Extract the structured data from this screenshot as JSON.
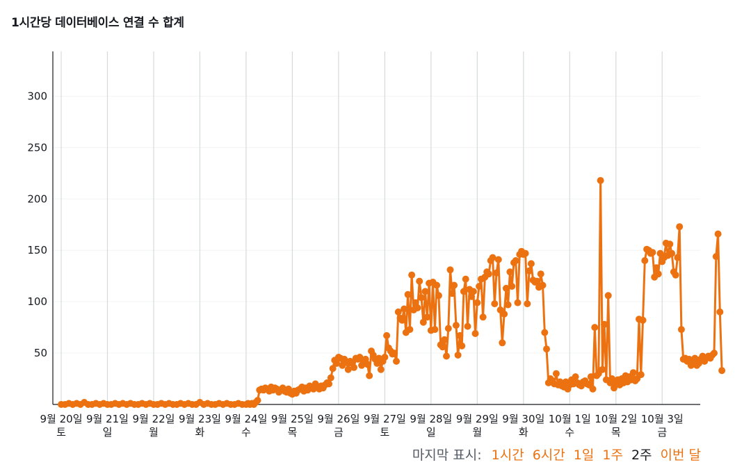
{
  "title": "1시간당 데이터베이스 연결 수 합계",
  "footer": {
    "label": "마지막 표시:",
    "options": [
      {
        "label": "1시간",
        "active": false
      },
      {
        "label": "6시간",
        "active": false
      },
      {
        "label": "1일",
        "active": false
      },
      {
        "label": "1주",
        "active": false
      },
      {
        "label": "2주",
        "active": true
      },
      {
        "label": "이번 달",
        "active": false
      }
    ]
  },
  "colors": {
    "series": "#ec7211",
    "grid_vertical": "#d5dbdb",
    "grid_horizontal": "#f2f3f3",
    "axis": "#16191f"
  },
  "chart_data": {
    "type": "line",
    "title": "1시간당 데이터베이스 연결 수 합계",
    "xlabel": "",
    "ylabel": "",
    "ylim": [
      0,
      330
    ],
    "yticks": [
      50,
      100,
      150,
      200,
      250,
      300
    ],
    "x_unit": "hour",
    "xlim": [
      0,
      348
    ],
    "grid": true,
    "day_ticks": [
      {
        "x": 0,
        "label1": "9월 20일",
        "label2": "토"
      },
      {
        "x": 24,
        "label1": "9월 21일",
        "label2": "일"
      },
      {
        "x": 48,
        "label1": "9월 22일",
        "label2": "월"
      },
      {
        "x": 72,
        "label1": "9월 23일",
        "label2": "화"
      },
      {
        "x": 96,
        "label1": "9월 24일",
        "label2": "수"
      },
      {
        "x": 120,
        "label1": "9월 25일",
        "label2": "목"
      },
      {
        "x": 144,
        "label1": "9월 26일",
        "label2": "금"
      },
      {
        "x": 168,
        "label1": "9월 27일",
        "label2": "토"
      },
      {
        "x": 192,
        "label1": "9월 28일",
        "label2": "일"
      },
      {
        "x": 216,
        "label1": "9월 29일",
        "label2": "월"
      },
      {
        "x": 240,
        "label1": "9월 30일",
        "label2": "화"
      },
      {
        "x": 264,
        "label1": "10월 1일",
        "label2": "수"
      },
      {
        "x": 288,
        "label1": "10월 2일",
        "label2": "목"
      },
      {
        "x": 312,
        "label1": "10월 3일",
        "label2": "금"
      }
    ],
    "series": [
      {
        "values": [
          [
            0,
            0
          ],
          [
            2,
            0
          ],
          [
            4,
            1
          ],
          [
            6,
            0
          ],
          [
            8,
            1
          ],
          [
            10,
            0
          ],
          [
            12,
            2
          ],
          [
            14,
            0
          ],
          [
            16,
            0
          ],
          [
            18,
            1
          ],
          [
            20,
            0
          ],
          [
            22,
            1
          ],
          [
            24,
            0
          ],
          [
            26,
            0
          ],
          [
            28,
            1
          ],
          [
            30,
            0
          ],
          [
            32,
            1
          ],
          [
            34,
            0
          ],
          [
            36,
            1
          ],
          [
            38,
            0
          ],
          [
            40,
            0
          ],
          [
            42,
            1
          ],
          [
            44,
            0
          ],
          [
            46,
            1
          ],
          [
            48,
            0
          ],
          [
            50,
            0
          ],
          [
            52,
            1
          ],
          [
            54,
            0
          ],
          [
            56,
            1
          ],
          [
            58,
            0
          ],
          [
            60,
            0
          ],
          [
            62,
            1
          ],
          [
            64,
            0
          ],
          [
            66,
            1
          ],
          [
            68,
            0
          ],
          [
            70,
            0
          ],
          [
            72,
            2
          ],
          [
            74,
            0
          ],
          [
            76,
            1
          ],
          [
            78,
            0
          ],
          [
            80,
            0
          ],
          [
            82,
            1
          ],
          [
            84,
            0
          ],
          [
            86,
            1
          ],
          [
            88,
            0
          ],
          [
            90,
            0
          ],
          [
            92,
            1
          ],
          [
            94,
            0
          ],
          [
            96,
            0
          ],
          [
            97,
            1
          ],
          [
            98,
            0
          ],
          [
            99,
            1
          ],
          [
            100,
            0
          ],
          [
            101,
            2
          ],
          [
            102,
            4
          ],
          [
            103,
            14
          ],
          [
            104,
            15
          ],
          [
            105,
            14
          ],
          [
            106,
            16
          ],
          [
            107,
            15
          ],
          [
            108,
            13
          ],
          [
            109,
            17
          ],
          [
            110,
            14
          ],
          [
            111,
            16
          ],
          [
            112,
            15
          ],
          [
            113,
            12
          ],
          [
            114,
            14
          ],
          [
            115,
            16
          ],
          [
            116,
            13
          ],
          [
            117,
            12
          ],
          [
            118,
            15
          ],
          [
            119,
            11
          ],
          [
            120,
            10
          ],
          [
            121,
            13
          ],
          [
            122,
            11
          ],
          [
            123,
            14
          ],
          [
            124,
            15
          ],
          [
            125,
            17
          ],
          [
            126,
            13
          ],
          [
            127,
            16
          ],
          [
            128,
            14
          ],
          [
            129,
            18
          ],
          [
            130,
            16
          ],
          [
            131,
            15
          ],
          [
            132,
            20
          ],
          [
            133,
            17
          ],
          [
            134,
            15
          ],
          [
            135,
            18
          ],
          [
            136,
            16
          ],
          [
            137,
            19
          ],
          [
            138,
            21
          ],
          [
            139,
            20
          ],
          [
            140,
            26
          ],
          [
            141,
            35
          ],
          [
            142,
            43
          ],
          [
            143,
            40
          ],
          [
            144,
            46
          ],
          [
            145,
            45
          ],
          [
            146,
            38
          ],
          [
            147,
            44
          ],
          [
            148,
            41
          ],
          [
            149,
            34
          ],
          [
            150,
            42
          ],
          [
            151,
            40
          ],
          [
            152,
            36
          ],
          [
            153,
            45
          ],
          [
            154,
            44
          ],
          [
            155,
            46
          ],
          [
            156,
            38
          ],
          [
            157,
            42
          ],
          [
            158,
            44
          ],
          [
            159,
            39
          ],
          [
            160,
            28
          ],
          [
            161,
            52
          ],
          [
            162,
            48
          ],
          [
            163,
            44
          ],
          [
            164,
            40
          ],
          [
            165,
            45
          ],
          [
            166,
            34
          ],
          [
            167,
            42
          ],
          [
            168,
            46
          ],
          [
            169,
            67
          ],
          [
            170,
            55
          ],
          [
            171,
            52
          ],
          [
            172,
            49
          ],
          [
            173,
            50
          ],
          [
            174,
            42
          ],
          [
            175,
            90
          ],
          [
            176,
            84
          ],
          [
            177,
            82
          ],
          [
            178,
            93
          ],
          [
            179,
            70
          ],
          [
            180,
            107
          ],
          [
            181,
            73
          ],
          [
            182,
            126
          ],
          [
            183,
            92
          ],
          [
            184,
            99
          ],
          [
            185,
            94
          ],
          [
            186,
            120
          ],
          [
            187,
            104
          ],
          [
            188,
            80
          ],
          [
            189,
            110
          ],
          [
            190,
            85
          ],
          [
            191,
            118
          ],
          [
            192,
            72
          ],
          [
            193,
            119
          ],
          [
            194,
            73
          ],
          [
            195,
            116
          ],
          [
            196,
            106
          ],
          [
            197,
            58
          ],
          [
            198,
            56
          ],
          [
            199,
            63
          ],
          [
            200,
            47
          ],
          [
            201,
            74
          ],
          [
            202,
            131
          ],
          [
            203,
            108
          ],
          [
            204,
            116
          ],
          [
            205,
            77
          ],
          [
            206,
            48
          ],
          [
            207,
            67
          ],
          [
            208,
            57
          ],
          [
            209,
            110
          ],
          [
            210,
            122
          ],
          [
            211,
            76
          ],
          [
            212,
            112
          ],
          [
            213,
            105
          ],
          [
            214,
            110
          ],
          [
            215,
            69
          ],
          [
            216,
            99
          ],
          [
            217,
            115
          ],
          [
            218,
            122
          ],
          [
            219,
            85
          ],
          [
            220,
            124
          ],
          [
            221,
            129
          ],
          [
            222,
            127
          ],
          [
            223,
            140
          ],
          [
            224,
            143
          ],
          [
            225,
            98
          ],
          [
            226,
            128
          ],
          [
            227,
            141
          ],
          [
            228,
            92
          ],
          [
            229,
            60
          ],
          [
            230,
            88
          ],
          [
            231,
            113
          ],
          [
            232,
            97
          ],
          [
            233,
            129
          ],
          [
            234,
            115
          ],
          [
            235,
            138
          ],
          [
            236,
            140
          ],
          [
            237,
            99
          ],
          [
            238,
            146
          ],
          [
            239,
            149
          ],
          [
            240,
            146
          ],
          [
            241,
            147
          ],
          [
            242,
            98
          ],
          [
            243,
            130
          ],
          [
            244,
            137
          ],
          [
            245,
            121
          ],
          [
            246,
            119
          ],
          [
            247,
            120
          ],
          [
            248,
            114
          ],
          [
            249,
            127
          ],
          [
            250,
            116
          ],
          [
            251,
            70
          ],
          [
            252,
            54
          ],
          [
            253,
            21
          ],
          [
            254,
            25
          ],
          [
            255,
            23
          ],
          [
            256,
            20
          ],
          [
            257,
            30
          ],
          [
            258,
            19
          ],
          [
            259,
            22
          ],
          [
            260,
            18
          ],
          [
            261,
            17
          ],
          [
            262,
            22
          ],
          [
            263,
            15
          ],
          [
            264,
            19
          ],
          [
            265,
            24
          ],
          [
            266,
            20
          ],
          [
            267,
            27
          ],
          [
            268,
            21
          ],
          [
            269,
            19
          ],
          [
            270,
            18
          ],
          [
            271,
            22
          ],
          [
            272,
            23
          ],
          [
            273,
            20
          ],
          [
            274,
            19
          ],
          [
            275,
            27
          ],
          [
            276,
            15
          ],
          [
            277,
            75
          ],
          [
            278,
            28
          ],
          [
            279,
            30
          ],
          [
            280,
            218
          ],
          [
            281,
            34
          ],
          [
            282,
            78
          ],
          [
            283,
            24
          ],
          [
            284,
            106
          ],
          [
            285,
            21
          ],
          [
            286,
            25
          ],
          [
            287,
            16
          ],
          [
            288,
            22
          ],
          [
            289,
            24
          ],
          [
            290,
            19
          ],
          [
            291,
            25
          ],
          [
            292,
            21
          ],
          [
            293,
            28
          ],
          [
            294,
            22
          ],
          [
            295,
            27
          ],
          [
            296,
            24
          ],
          [
            297,
            31
          ],
          [
            298,
            23
          ],
          [
            299,
            25
          ],
          [
            300,
            83
          ],
          [
            301,
            29
          ],
          [
            302,
            82
          ],
          [
            303,
            140
          ],
          [
            304,
            151
          ],
          [
            305,
            150
          ],
          [
            306,
            147
          ],
          [
            307,
            148
          ],
          [
            308,
            124
          ],
          [
            309,
            133
          ],
          [
            310,
            127
          ],
          [
            311,
            147
          ],
          [
            312,
            139
          ],
          [
            313,
            143
          ],
          [
            314,
            157
          ],
          [
            315,
            145
          ],
          [
            316,
            156
          ],
          [
            317,
            147
          ],
          [
            318,
            129
          ],
          [
            319,
            126
          ],
          [
            320,
            143
          ],
          [
            321,
            173
          ],
          [
            322,
            73
          ],
          [
            323,
            44
          ],
          [
            324,
            45
          ],
          [
            325,
            42
          ],
          [
            326,
            44
          ],
          [
            327,
            38
          ],
          [
            328,
            41
          ],
          [
            329,
            45
          ],
          [
            330,
            38
          ],
          [
            331,
            40
          ],
          [
            332,
            44
          ],
          [
            333,
            47
          ],
          [
            334,
            42
          ],
          [
            335,
            45
          ],
          [
            336,
            47
          ],
          [
            337,
            45
          ],
          [
            338,
            48
          ],
          [
            339,
            50
          ],
          [
            340,
            144
          ],
          [
            341,
            166
          ],
          [
            342,
            90
          ],
          [
            343,
            33
          ]
        ]
      }
    ]
  }
}
